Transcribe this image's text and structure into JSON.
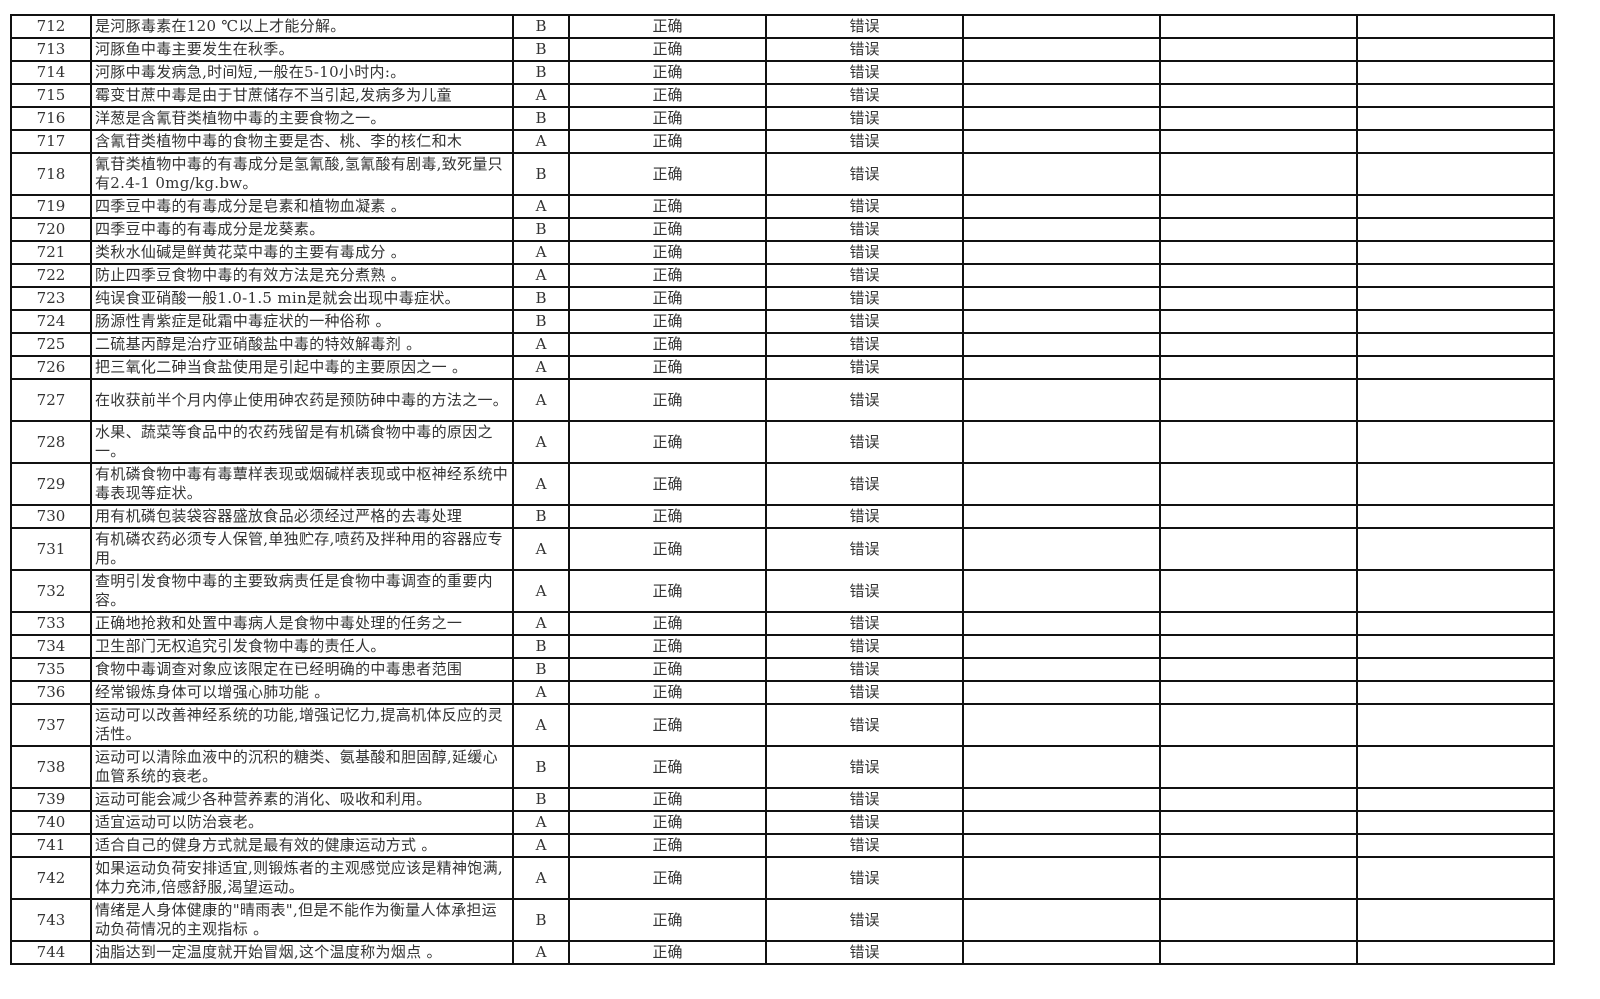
{
  "options": {
    "a": "正确",
    "b": "错误"
  },
  "rows": [
    {
      "no": "712",
      "q": "是河豚毒素在120 ℃以上才能分解。",
      "ans": "B"
    },
    {
      "no": "713",
      "q": "河豚鱼中毒主要发生在秋季。",
      "ans": "B"
    },
    {
      "no": "714",
      "q": "河豚中毒发病急,时间短,一般在5-10小时内:。",
      "ans": "B"
    },
    {
      "no": "715",
      "q": "霉变甘蔗中毒是由于甘蔗储存不当引起,发病多为儿童",
      "ans": "A"
    },
    {
      "no": "716",
      "q": "洋葱是含氰苷类植物中毒的主要食物之一。",
      "ans": "B"
    },
    {
      "no": "717",
      "q": "含氰苷类植物中毒的食物主要是杏、桃、李的核仁和木",
      "ans": "A"
    },
    {
      "no": "718",
      "q": "氰苷类植物中毒的有毒成分是氢氰酸,氢氰酸有剧毒,致死量只有2.4-1 0mg/kg.bw。",
      "ans": "B",
      "double": true
    },
    {
      "no": "719",
      "q": "四季豆中毒的有毒成分是皂素和植物血凝素 。",
      "ans": "A"
    },
    {
      "no": "720",
      "q": "四季豆中毒的有毒成分是龙葵素。",
      "ans": "B"
    },
    {
      "no": "721",
      "q": "类秋水仙碱是鲜黄花菜中毒的主要有毒成分 。",
      "ans": "A"
    },
    {
      "no": "722",
      "q": "防止四季豆食物中毒的有效方法是充分煮熟 。",
      "ans": "A"
    },
    {
      "no": "723",
      "q": "纯误食亚硝酸一般1.0-1.5 min是就会出现中毒症状。",
      "ans": "B"
    },
    {
      "no": "724",
      "q": "肠源性青紫症是砒霜中毒症状的一种俗称 。",
      "ans": "B"
    },
    {
      "no": "725",
      "q": "二硫基丙醇是治疗亚硝酸盐中毒的特效解毒剂 。",
      "ans": "A"
    },
    {
      "no": "726",
      "q": "把三氧化二砷当食盐使用是引起中毒的主要原因之一 。",
      "ans": "A"
    },
    {
      "no": "727",
      "q": "在收获前半个月内停止使用砷农药是预防砷中毒的方法之一。",
      "ans": "A",
      "double": true
    },
    {
      "no": "728",
      "q": "水果、蔬菜等食品中的农药残留是有机磷食物中毒的原因之一。",
      "ans": "A",
      "double": true
    },
    {
      "no": "729",
      "q": "有机磷食物中毒有毒蕈样表现或烟碱样表现或中枢神经系统中毒表现等症状。",
      "ans": "A",
      "double": true
    },
    {
      "no": "730",
      "q": "用有机磷包装袋容器盛放食品必须经过严格的去毒处理",
      "ans": "B"
    },
    {
      "no": "731",
      "q": "有机磷农药必须专人保管,单独贮存,喷药及拌种用的容器应专用。",
      "ans": "A",
      "double": true
    },
    {
      "no": "732",
      "q": "查明引发食物中毒的主要致病责任是食物中毒调查的重要内容。",
      "ans": "A",
      "double": true
    },
    {
      "no": "733",
      "q": "正确地抢救和处置中毒病人是食物中毒处理的任务之一",
      "ans": "A"
    },
    {
      "no": "734",
      "q": "卫生部门无权追究引发食物中毒的责任人。",
      "ans": "B"
    },
    {
      "no": "735",
      "q": "食物中毒调查对象应该限定在已经明确的中毒患者范围",
      "ans": "B"
    },
    {
      "no": "736",
      "q": "经常锻炼身体可以增强心肺功能 。",
      "ans": "A"
    },
    {
      "no": "737",
      "q": "运动可以改善神经系统的功能,增强记忆力,提高机体反应的灵活性。",
      "ans": "A",
      "double": true
    },
    {
      "no": "738",
      "q": "运动可以清除血液中的沉积的糖类、氨基酸和胆固醇,延缓心血管系统的衰老。",
      "ans": "B",
      "double": true
    },
    {
      "no": "739",
      "q": "运动可能会减少各种营养素的消化、吸收和利用。",
      "ans": "B"
    },
    {
      "no": "740",
      "q": "适宜运动可以防治衰老。",
      "ans": "A"
    },
    {
      "no": "741",
      "q": "适合自己的健身方式就是最有效的健康运动方式 。",
      "ans": "A"
    },
    {
      "no": "742",
      "q": "如果运动负荷安排适宜,则锻炼者的主观感觉应该是精神饱满,体力充沛,倍感舒服,渴望运动。",
      "ans": "A",
      "double": true
    },
    {
      "no": "743",
      "q": "情绪是人身体健康的\"晴雨表\",但是不能作为衡量人体承担运动负荷情况的主观指标 。",
      "ans": "B",
      "double": true
    },
    {
      "no": "744",
      "q": "油脂达到一定温度就开始冒烟,这个温度称为烟点 。",
      "ans": "A"
    }
  ]
}
